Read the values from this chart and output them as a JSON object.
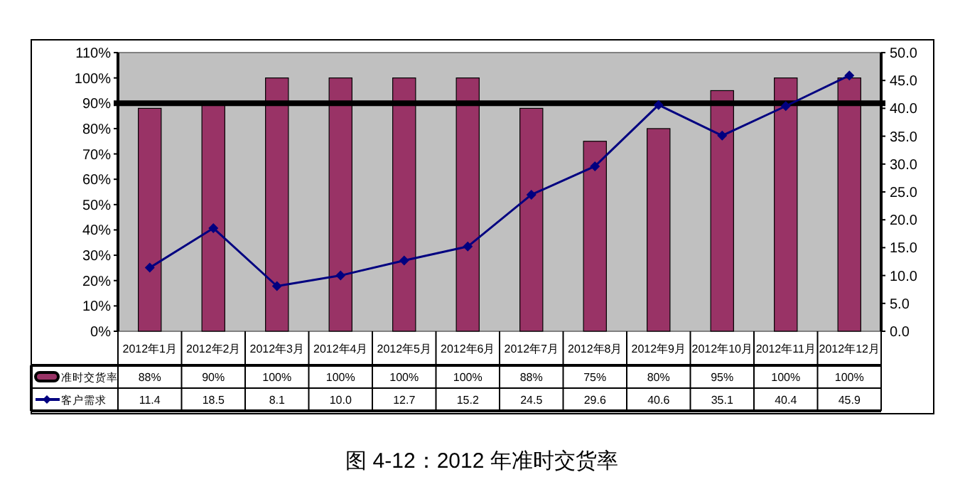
{
  "chart_data": {
    "type": "bar",
    "title": "图 4-12：2012 年准时交货率",
    "categories": [
      "2012年1月",
      "2012年2月",
      "2012年3月",
      "2012年4月",
      "2012年5月",
      "2012年6月",
      "2012年7月",
      "2012年8月",
      "2012年9月",
      "2012年10月",
      "2012年11月",
      "2012年12月"
    ],
    "series": [
      {
        "name": "准时交货率",
        "color": "#993366",
        "values": [
          88,
          90,
          100,
          100,
          100,
          100,
          88,
          75,
          80,
          95,
          100,
          100
        ],
        "value_labels": [
          "88%",
          "90%",
          "100%",
          "100%",
          "100%",
          "100%",
          "88%",
          "75%",
          "80%",
          "95%",
          "100%",
          "100%"
        ]
      },
      {
        "name": "客户需求",
        "type": "line",
        "axis": "y2",
        "color": "#000080",
        "marker": "diamond",
        "values": [
          11.4,
          18.5,
          8.1,
          10.0,
          12.7,
          15.2,
          24.5,
          29.6,
          40.6,
          35.1,
          40.4,
          45.9
        ],
        "value_labels": [
          "11.4",
          "18.5",
          "8.1",
          "10.0",
          "12.7",
          "15.2",
          "24.5",
          "29.6",
          "40.6",
          "35.1",
          "40.4",
          "45.9"
        ]
      }
    ],
    "ylim": [
      0,
      110
    ],
    "yticks": [
      {
        "value": 0,
        "label": "0%"
      },
      {
        "value": 10,
        "label": "10%"
      },
      {
        "value": 20,
        "label": "20%"
      },
      {
        "value": 30,
        "label": "30%"
      },
      {
        "value": 40,
        "label": "40%"
      },
      {
        "value": 50,
        "label": "50%"
      },
      {
        "value": 60,
        "label": "60%"
      },
      {
        "value": 70,
        "label": "70%"
      },
      {
        "value": 80,
        "label": "80%"
      },
      {
        "value": 90,
        "label": "90%"
      },
      {
        "value": 100,
        "label": "100%"
      },
      {
        "value": 110,
        "label": "110%"
      }
    ],
    "y2lim": [
      0,
      50
    ],
    "y2ticks": [
      {
        "value": 0,
        "label": "0.0"
      },
      {
        "value": 5,
        "label": "5.0"
      },
      {
        "value": 10,
        "label": "10.0"
      },
      {
        "value": 15,
        "label": "15.0"
      },
      {
        "value": 20,
        "label": "20.0"
      },
      {
        "value": 25,
        "label": "25.0"
      },
      {
        "value": 30,
        "label": "30.0"
      },
      {
        "value": 35,
        "label": "35.0"
      },
      {
        "value": 40,
        "label": "40.0"
      },
      {
        "value": 45,
        "label": "45.0"
      },
      {
        "value": 50,
        "label": "50.0"
      }
    ],
    "ref_lines": [
      {
        "axis": "y",
        "value": 90,
        "color": "#000000"
      }
    ],
    "grid": false,
    "legend": "bottom left"
  }
}
